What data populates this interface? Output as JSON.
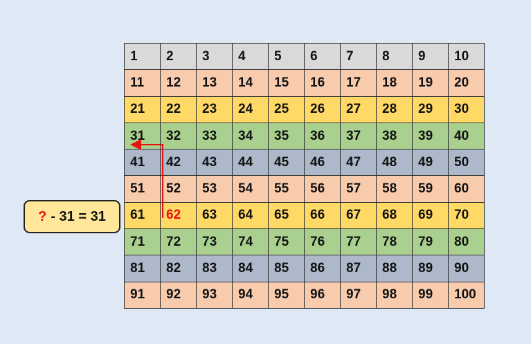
{
  "grid": {
    "numbers": [
      1,
      2,
      3,
      4,
      5,
      6,
      7,
      8,
      9,
      10,
      11,
      12,
      13,
      14,
      15,
      16,
      17,
      18,
      19,
      20,
      21,
      22,
      23,
      24,
      25,
      26,
      27,
      28,
      29,
      30,
      31,
      32,
      33,
      34,
      35,
      36,
      37,
      38,
      39,
      40,
      41,
      42,
      43,
      44,
      45,
      46,
      47,
      48,
      49,
      50,
      51,
      52,
      53,
      54,
      55,
      56,
      57,
      58,
      59,
      60,
      61,
      62,
      63,
      64,
      65,
      66,
      67,
      68,
      69,
      70,
      71,
      72,
      73,
      74,
      75,
      76,
      77,
      78,
      79,
      80,
      81,
      82,
      83,
      84,
      85,
      86,
      87,
      88,
      89,
      90,
      91,
      92,
      93,
      94,
      95,
      96,
      97,
      98,
      99,
      100
    ],
    "highlighted": 62,
    "arrow_target": 31,
    "row_colors": [
      "#d9d9d9",
      "#f8cbad",
      "#ffd966",
      "#a9d08e",
      "#adb9ca",
      "#f8cbad",
      "#ffd966",
      "#a9d08e",
      "#adb9ca",
      "#f8cbad"
    ],
    "highlight_color": "#e81010"
  },
  "equation": {
    "unknown": "?",
    "rest": "- 31 = 31"
  }
}
